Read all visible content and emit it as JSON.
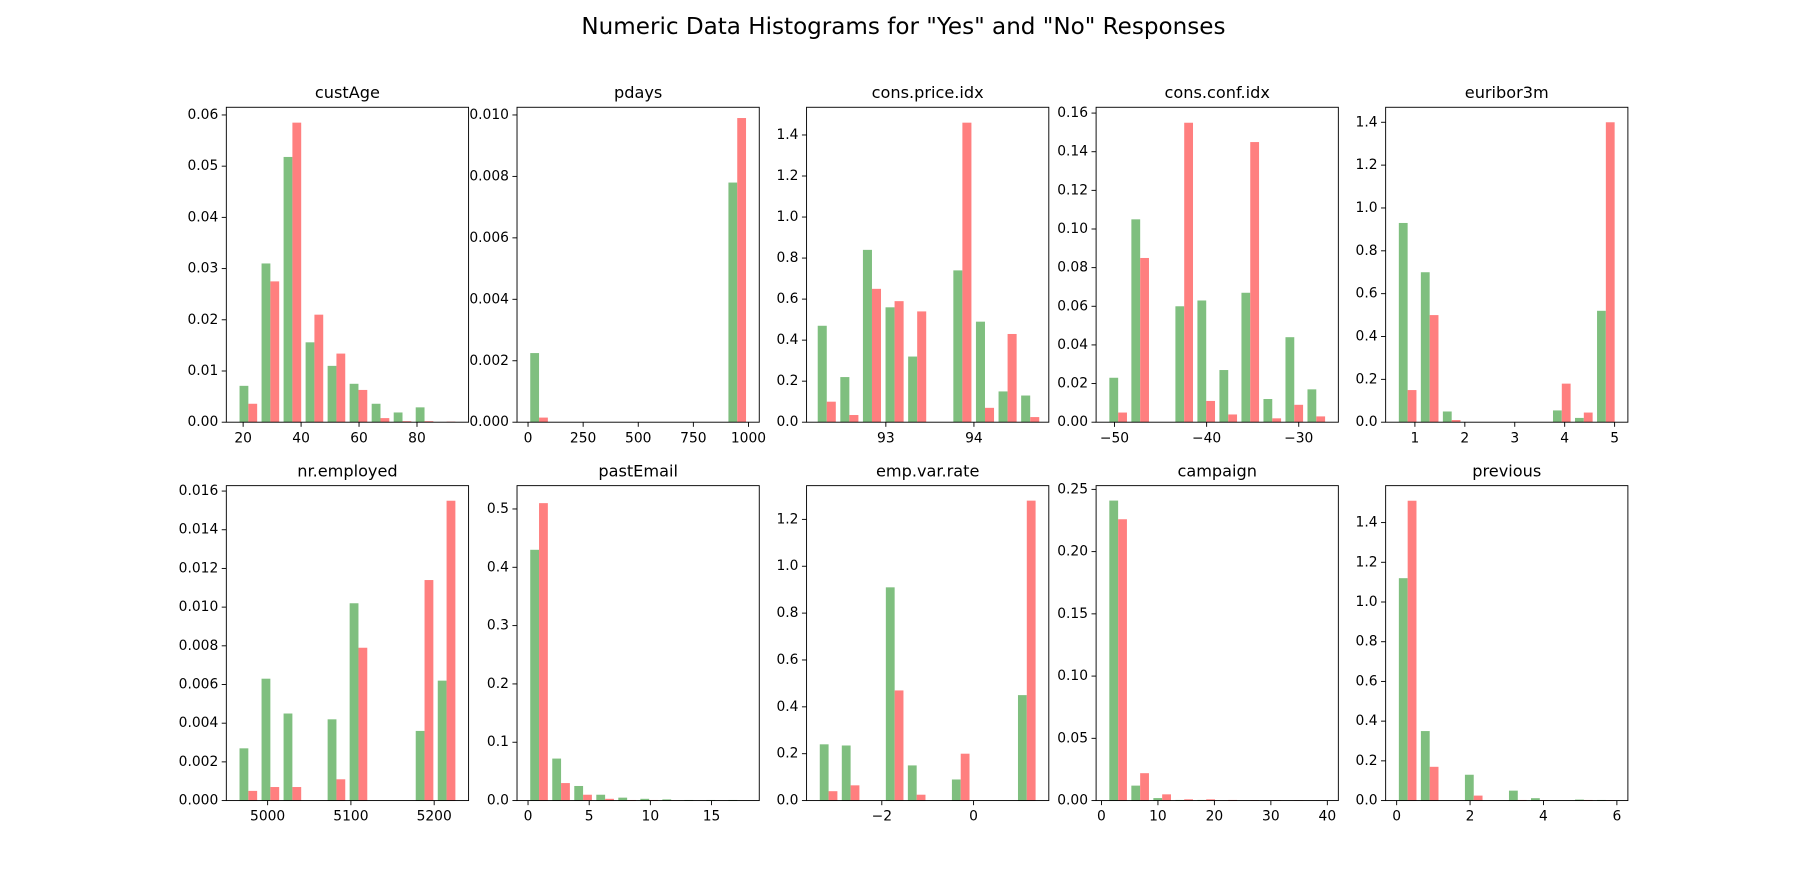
{
  "title": "Numeric Data Histograms for \"Yes\" and \"No\" Responses",
  "chart_data": [
    {
      "type": "histogram",
      "title": "custAge",
      "bins": [
        18,
        25.6,
        33.2,
        40.8,
        48.4,
        56,
        63.6,
        71.2,
        78.8,
        86.4,
        94
      ],
      "series": [
        {
          "color": "#7fbf7f",
          "values": [
            0.0071,
            0.031,
            0.0518,
            0.0156,
            0.011,
            0.0075,
            0.0036,
            0.0019,
            0.0029,
            0
          ]
        },
        {
          "color": "#ff7f7f",
          "values": [
            0.0036,
            0.0275,
            0.0585,
            0.021,
            0.0134,
            0.0063,
            0.0008,
            0.0002,
            0.0002,
            0.0001
          ]
        }
      ],
      "xlim": [
        14.2,
        97.8
      ],
      "xticks": [
        20,
        40,
        60,
        80
      ],
      "ylim": [
        0,
        0.0615
      ],
      "yticks": [
        {
          "value": 0,
          "label": "0.00"
        },
        {
          "value": 0.01,
          "label": "0.01"
        },
        {
          "value": 0.02,
          "label": "0.02"
        },
        {
          "value": 0.03,
          "label": "0.03"
        },
        {
          "value": 0.04,
          "label": "0.04"
        },
        {
          "value": 0.05,
          "label": "0.05"
        },
        {
          "value": 0.06,
          "label": "0.06"
        }
      ]
    },
    {
      "type": "histogram",
      "title": "pdays",
      "bins": [
        0,
        99.9,
        199.8,
        299.7,
        399.6,
        499.5,
        599.4,
        699.3,
        799.2,
        899.1,
        999
      ],
      "series": [
        {
          "color": "#7fbf7f",
          "values": [
            0.00225,
            0,
            0,
            0,
            0,
            0,
            0,
            0,
            0,
            0.0078
          ]
        },
        {
          "color": "#ff7f7f",
          "values": [
            0.00015,
            0,
            0,
            0,
            0,
            0,
            0,
            0,
            0,
            0.0099
          ]
        }
      ],
      "xlim": [
        -50,
        1049
      ],
      "xticks": [
        0,
        250,
        500,
        750,
        1000
      ],
      "ylim": [
        0,
        0.01025
      ],
      "yticks": [
        {
          "value": 0,
          "label": "0.000"
        },
        {
          "value": 0.002,
          "label": "0.002"
        },
        {
          "value": 0.004,
          "label": "0.004"
        },
        {
          "value": 0.006,
          "label": "0.006"
        },
        {
          "value": 0.008,
          "label": "0.008"
        },
        {
          "value": 0.01,
          "label": "0.010"
        }
      ]
    },
    {
      "type": "histogram",
      "title": "cons.price.idx",
      "bins": [
        92.201,
        92.4576,
        92.7142,
        92.9708,
        93.2274,
        93.484,
        93.7406,
        93.9972,
        94.2538,
        94.5104,
        94.767
      ],
      "series": [
        {
          "color": "#7fbf7f",
          "values": [
            0.47,
            0.22,
            0.84,
            0.56,
            0.32,
            0,
            0.74,
            0.49,
            0.15,
            0.13
          ]
        },
        {
          "color": "#ff7f7f",
          "values": [
            0.1,
            0.035,
            0.65,
            0.59,
            0.54,
            0,
            1.46,
            0.07,
            0.43,
            0.025
          ]
        }
      ],
      "xlim": [
        92.1,
        94.85
      ],
      "xticks": [
        93,
        94
      ],
      "ylim": [
        0,
        1.535
      ],
      "yticks": [
        {
          "value": 0,
          "label": "0.0"
        },
        {
          "value": 0.2,
          "label": "0.2"
        },
        {
          "value": 0.4,
          "label": "0.4"
        },
        {
          "value": 0.6,
          "label": "0.6"
        },
        {
          "value": 0.8,
          "label": "0.8"
        },
        {
          "value": 1,
          "label": "1.0"
        },
        {
          "value": 1.2,
          "label": "1.2"
        },
        {
          "value": 1.4,
          "label": "1.4"
        }
      ]
    },
    {
      "type": "histogram",
      "title": "cons.conf.idx",
      "bins": [
        -50.8,
        -48.41,
        -46.02,
        -43.63,
        -41.24,
        -38.85,
        -36.46,
        -34.07,
        -31.68,
        -29.29,
        -26.9
      ],
      "series": [
        {
          "color": "#7fbf7f",
          "values": [
            0.023,
            0.105,
            0,
            0.06,
            0.063,
            0.027,
            0.067,
            0.012,
            0.044,
            0.017
          ]
        },
        {
          "color": "#ff7f7f",
          "values": [
            0.005,
            0.085,
            0,
            0.155,
            0.011,
            0.004,
            0.145,
            0.002,
            0.009,
            0.003
          ]
        }
      ],
      "xlim": [
        -52,
        -25.7
      ],
      "xticks": [
        {
          "value": -50,
          "label": "−50"
        },
        {
          "value": -40,
          "label": "−40"
        },
        {
          "value": -30,
          "label": "−30"
        }
      ],
      "ylim": [
        0,
        0.163
      ],
      "yticks": [
        {
          "value": 0,
          "label": "0.00"
        },
        {
          "value": 0.02,
          "label": "0.02"
        },
        {
          "value": 0.04,
          "label": "0.04"
        },
        {
          "value": 0.06,
          "label": "0.06"
        },
        {
          "value": 0.08,
          "label": "0.08"
        },
        {
          "value": 0.1,
          "label": "0.10"
        },
        {
          "value": 0.12,
          "label": "0.12"
        },
        {
          "value": 0.14,
          "label": "0.14"
        },
        {
          "value": 0.16,
          "label": "0.16"
        }
      ]
    },
    {
      "type": "histogram",
      "title": "euribor3m",
      "bins": [
        0.634,
        1.0751,
        1.5162,
        1.9573,
        2.3984,
        2.8395,
        3.2806,
        3.7217,
        4.1628,
        4.6039,
        5.045
      ],
      "series": [
        {
          "color": "#7fbf7f",
          "values": [
            0.93,
            0.7,
            0.05,
            0,
            0,
            0,
            0,
            0.055,
            0.02,
            0.52
          ]
        },
        {
          "color": "#ff7f7f",
          "values": [
            0.15,
            0.5,
            0.01,
            0,
            0,
            0,
            0,
            0.18,
            0.045,
            1.4
          ]
        }
      ],
      "xlim": [
        0.414,
        5.266
      ],
      "xticks": [
        1,
        2,
        3,
        4,
        5
      ],
      "ylim": [
        0,
        1.47
      ],
      "yticks": [
        {
          "value": 0,
          "label": "0.0"
        },
        {
          "value": 0.2,
          "label": "0.2"
        },
        {
          "value": 0.4,
          "label": "0.4"
        },
        {
          "value": 0.6,
          "label": "0.6"
        },
        {
          "value": 0.8,
          "label": "0.8"
        },
        {
          "value": 1,
          "label": "1.0"
        },
        {
          "value": 1.2,
          "label": "1.2"
        },
        {
          "value": 1.4,
          "label": "1.4"
        }
      ]
    },
    {
      "type": "histogram",
      "title": "nr.employed",
      "bins": [
        4963.6,
        4990.05,
        5016.5,
        5042.95,
        5069.4,
        5095.85,
        5122.3,
        5148.75,
        5175.2,
        5201.65,
        5228.1
      ],
      "series": [
        {
          "color": "#7fbf7f",
          "values": [
            0.0027,
            0.0063,
            0.0045,
            0,
            0.0042,
            0.0102,
            0,
            0,
            0.0036,
            0.0062
          ]
        },
        {
          "color": "#ff7f7f",
          "values": [
            0.0005,
            0.0007,
            0.0007,
            0,
            0.0011,
            0.0079,
            0,
            0,
            0.0114,
            0.0155
          ]
        }
      ],
      "xlim": [
        4950.4,
        5241.3
      ],
      "xticks": [
        5000,
        5100,
        5200
      ],
      "ylim": [
        0,
        0.01628
      ],
      "yticks": [
        {
          "value": 0,
          "label": "0.000"
        },
        {
          "value": 0.002,
          "label": "0.002"
        },
        {
          "value": 0.004,
          "label": "0.004"
        },
        {
          "value": 0.006,
          "label": "0.006"
        },
        {
          "value": 0.008,
          "label": "0.008"
        },
        {
          "value": 0.01,
          "label": "0.010"
        },
        {
          "value": 0.012,
          "label": "0.012"
        },
        {
          "value": 0.014,
          "label": "0.014"
        },
        {
          "value": 0.016,
          "label": "0.016"
        }
      ]
    },
    {
      "type": "histogram",
      "title": "pastEmail",
      "bins": [
        0,
        1.8,
        3.6,
        5.4,
        7.2,
        9,
        10.8,
        12.6,
        14.4,
        16.2,
        18
      ],
      "series": [
        {
          "color": "#7fbf7f",
          "values": [
            0.43,
            0.072,
            0.025,
            0.01,
            0.005,
            0.003,
            0.002,
            0.001,
            0.001,
            0.001
          ]
        },
        {
          "color": "#ff7f7f",
          "values": [
            0.51,
            0.03,
            0.01,
            0.003,
            0.001,
            0.001,
            0.0005,
            0,
            0,
            0
          ]
        }
      ],
      "xlim": [
        -0.9,
        18.9
      ],
      "xticks": [
        0,
        5,
        10,
        15
      ],
      "ylim": [
        0,
        0.54
      ],
      "yticks": [
        {
          "value": 0,
          "label": "0.0"
        },
        {
          "value": 0.1,
          "label": "0.1"
        },
        {
          "value": 0.2,
          "label": "0.2"
        },
        {
          "value": 0.3,
          "label": "0.3"
        },
        {
          "value": 0.4,
          "label": "0.4"
        },
        {
          "value": 0.5,
          "label": "0.5"
        }
      ]
    },
    {
      "type": "histogram",
      "title": "emp.var.rate",
      "bins": [
        -3.4,
        -2.92,
        -2.44,
        -1.96,
        -1.48,
        -1,
        -0.52,
        -0.04,
        0.44,
        0.92,
        1.4
      ],
      "series": [
        {
          "color": "#7fbf7f",
          "values": [
            0.24,
            0.235,
            0,
            0.91,
            0.15,
            0,
            0.09,
            0,
            0,
            0.45
          ]
        },
        {
          "color": "#ff7f7f",
          "values": [
            0.04,
            0.065,
            0,
            0.47,
            0.025,
            0,
            0.2,
            0,
            0,
            1.28
          ]
        }
      ],
      "xlim": [
        -3.64,
        1.64
      ],
      "xticks": [
        {
          "value": -2,
          "label": "−2"
        },
        0
      ],
      "ylim": [
        0,
        1.344
      ],
      "yticks": [
        {
          "value": 0,
          "label": "0.0"
        },
        {
          "value": 0.2,
          "label": "0.2"
        },
        {
          "value": 0.4,
          "label": "0.4"
        },
        {
          "value": 0.6,
          "label": "0.6"
        },
        {
          "value": 0.8,
          "label": "0.8"
        },
        {
          "value": 1,
          "label": "1.0"
        },
        {
          "value": 1.2,
          "label": "1.2"
        }
      ]
    },
    {
      "type": "histogram",
      "title": "campaign",
      "bins": [
        1,
        4.9,
        8.8,
        12.7,
        16.6,
        20.5,
        24.4,
        28.3,
        32.2,
        36.1,
        40
      ],
      "series": [
        {
          "color": "#7fbf7f",
          "values": [
            0.241,
            0.012,
            0.002,
            0.0005,
            0.0005,
            0,
            0,
            0,
            0,
            0
          ]
        },
        {
          "color": "#ff7f7f",
          "values": [
            0.226,
            0.022,
            0.005,
            0.001,
            0.001,
            0.0005,
            0.0003,
            0.0003,
            0.0002,
            0.0001
          ]
        }
      ],
      "xlim": [
        -0.95,
        41.95
      ],
      "xticks": [
        0,
        10,
        20,
        30,
        40
      ],
      "ylim": [
        0,
        0.253
      ],
      "yticks": [
        {
          "value": 0,
          "label": "0.00"
        },
        {
          "value": 0.05,
          "label": "0.05"
        },
        {
          "value": 0.1,
          "label": "0.10"
        },
        {
          "value": 0.15,
          "label": "0.15"
        },
        {
          "value": 0.2,
          "label": "0.20"
        },
        {
          "value": 0.25,
          "label": "0.25"
        }
      ]
    },
    {
      "type": "histogram",
      "title": "previous",
      "bins": [
        0,
        0.6,
        1.2,
        1.8,
        2.4,
        3,
        3.6,
        4.2,
        4.8,
        5.4,
        6
      ],
      "series": [
        {
          "color": "#7fbf7f",
          "values": [
            1.12,
            0.35,
            0,
            0.13,
            0,
            0.05,
            0.012,
            0,
            0.005,
            0.003
          ]
        },
        {
          "color": "#ff7f7f",
          "values": [
            1.51,
            0.17,
            0,
            0.025,
            0,
            0.003,
            0.002,
            0,
            0.003,
            0.002
          ]
        }
      ],
      "xlim": [
        -0.3,
        6.3
      ],
      "xticks": [
        0,
        2,
        4,
        6
      ],
      "ylim": [
        0,
        1.586
      ],
      "yticks": [
        {
          "value": 0,
          "label": "0.0"
        },
        {
          "value": 0.2,
          "label": "0.2"
        },
        {
          "value": 0.4,
          "label": "0.4"
        },
        {
          "value": 0.6,
          "label": "0.6"
        },
        {
          "value": 0.8,
          "label": "0.8"
        },
        {
          "value": 1,
          "label": "1.0"
        },
        {
          "value": 1.2,
          "label": "1.2"
        },
        {
          "value": 1.4,
          "label": "1.4"
        }
      ]
    }
  ]
}
